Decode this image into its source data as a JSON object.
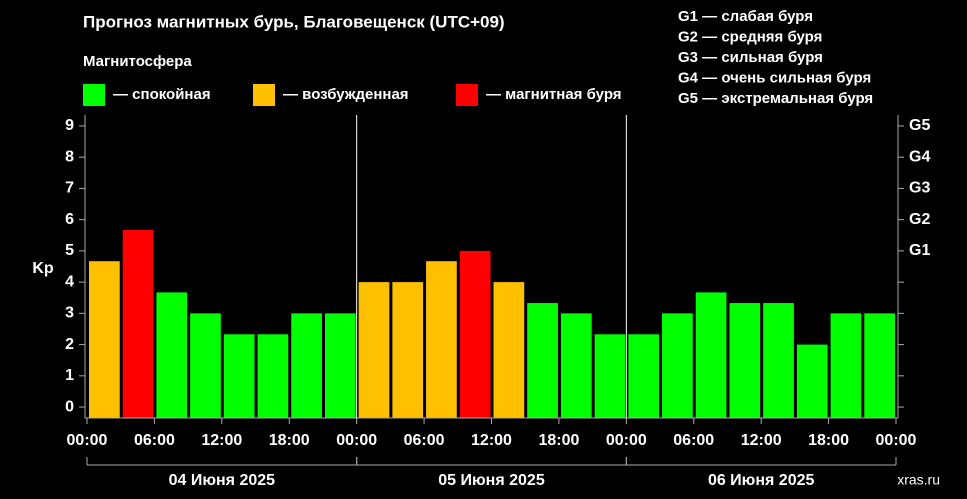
{
  "chart_data": {
    "type": "bar",
    "title": "Прогноз магнитных бурь, Благовещенск (UTC+09)",
    "legend_title": "Магнитосфера",
    "legend": [
      {
        "label": "— спокойная",
        "color": "#00ff00"
      },
      {
        "label": "— возбужденная",
        "color": "#ffc000"
      },
      {
        "label": "— магнитная буря",
        "color": "#ff0000"
      }
    ],
    "storm_levels": [
      "G1 — слабая буря",
      "G2 — средняя буря",
      "G3 — сильная буря",
      "G4 — очень сильная буря",
      "G5 — экстремальная буря"
    ],
    "y_label": "Kp",
    "x": [
      0,
      3,
      6,
      9,
      12,
      15,
      18,
      21,
      24,
      27,
      30,
      33,
      36,
      39,
      42,
      45,
      48,
      51,
      54,
      57,
      60,
      63,
      66,
      69
    ],
    "values": [
      4.67,
      5.67,
      3.67,
      3,
      2.33,
      2.33,
      3,
      3,
      4,
      4,
      4.67,
      5,
      4,
      3.33,
      3,
      2.33,
      2.33,
      3,
      3.67,
      3.33,
      3.33,
      2,
      3,
      3
    ],
    "colors": [
      "#ffc000",
      "#ff0000",
      "#00ff00",
      "#00ff00",
      "#00ff00",
      "#00ff00",
      "#00ff00",
      "#00ff00",
      "#ffc000",
      "#ffc000",
      "#ffc000",
      "#ff0000",
      "#ffc000",
      "#00ff00",
      "#00ff00",
      "#00ff00",
      "#00ff00",
      "#00ff00",
      "#00ff00",
      "#00ff00",
      "#00ff00",
      "#00ff00",
      "#00ff00",
      "#00ff00"
    ],
    "xlim": [
      0,
      72
    ],
    "xticks": [
      {
        "value": 0,
        "label": "00:00"
      },
      {
        "value": 6,
        "label": "06:00"
      },
      {
        "value": 12,
        "label": "12:00"
      },
      {
        "value": 18,
        "label": "18:00"
      },
      {
        "value": 24,
        "label": "00:00"
      },
      {
        "value": 30,
        "label": "06:00"
      },
      {
        "value": 36,
        "label": "12:00"
      },
      {
        "value": 42,
        "label": "18:00"
      },
      {
        "value": 48,
        "label": "00:00"
      },
      {
        "value": 54,
        "label": "06:00"
      },
      {
        "value": 60,
        "label": "12:00"
      },
      {
        "value": 66,
        "label": "18:00"
      },
      {
        "value": 72,
        "label": "00:00"
      }
    ],
    "days": [
      {
        "start": 0,
        "end": 24,
        "label": "04 Июня 2025"
      },
      {
        "start": 24,
        "end": 48,
        "label": "05 Июня 2025"
      },
      {
        "start": 48,
        "end": 72,
        "label": "06 Июня 2025"
      }
    ],
    "ylim": [
      -0.35,
      9.35
    ],
    "yticks": [
      0,
      1,
      2,
      3,
      4,
      5,
      6,
      7,
      8,
      9
    ],
    "y2lim": [
      -0.35,
      9.35
    ],
    "y2ticks": [
      {
        "value": 5,
        "label": "G1"
      },
      {
        "value": 6,
        "label": "G2"
      },
      {
        "value": 7,
        "label": "G3"
      },
      {
        "value": 8,
        "label": "G4"
      },
      {
        "value": 9,
        "label": "G5"
      }
    ],
    "watermark": "xras.ru"
  }
}
